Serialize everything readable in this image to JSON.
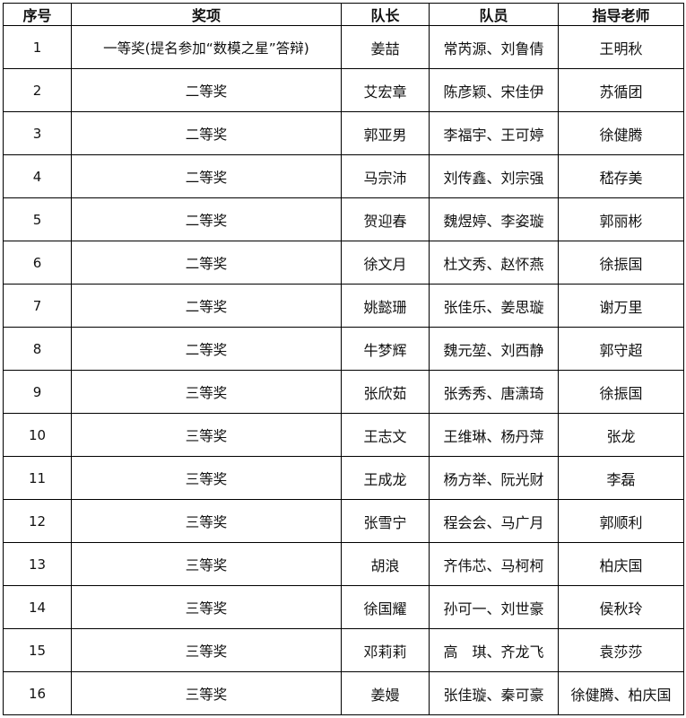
{
  "headers": [
    "序号",
    "奖项",
    "队长",
    "队员",
    "指导老师"
  ],
  "rows": [
    {
      "no": "1",
      "award": "一等奖(提名参加“数模之星”答辩)",
      "leader": "姜喆",
      "members": "常芮源、刘鲁倩",
      "advisor": "王明秋"
    },
    {
      "no": "2",
      "award": "二等奖",
      "leader": "艾宏章",
      "members": "陈彦颖、宋佳伊",
      "advisor": "苏循团"
    },
    {
      "no": "3",
      "award": "二等奖",
      "leader": "郭亚男",
      "members": "李福宇、王可婷",
      "advisor": "徐健腾"
    },
    {
      "no": "4",
      "award": "二等奖",
      "leader": "马宗沛",
      "members": "刘传鑫、刘宗强",
      "advisor": "嵇存美"
    },
    {
      "no": "5",
      "award": "二等奖",
      "leader": "贺迎春",
      "members": "魏煜婷、李姿璇",
      "advisor": "郭丽彬"
    },
    {
      "no": "6",
      "award": "二等奖",
      "leader": "徐文月",
      "members": "杜文秀、赵怀燕",
      "advisor": "徐振国"
    },
    {
      "no": "7",
      "award": "二等奖",
      "leader": "姚懿珊",
      "members": "张佳乐、姜思璇",
      "advisor": "谢万里"
    },
    {
      "no": "8",
      "award": "二等奖",
      "leader": "牛梦辉",
      "members": "魏元堃、刘西静",
      "advisor": "郭守超"
    },
    {
      "no": "9",
      "award": "三等奖",
      "leader": "张欣茹",
      "members": "张秀秀、唐潇琦",
      "advisor": "徐振国"
    },
    {
      "no": "10",
      "award": "三等奖",
      "leader": "王志文",
      "members": "王维琳、杨丹萍",
      "advisor": "张龙"
    },
    {
      "no": "11",
      "award": "三等奖",
      "leader": "王成龙",
      "members": "杨方举、阮光财",
      "advisor": "李磊"
    },
    {
      "no": "12",
      "award": "三等奖",
      "leader": "张雪宁",
      "members": "程会会、马广月",
      "advisor": "郭顺利"
    },
    {
      "no": "13",
      "award": "三等奖",
      "leader": "胡浪",
      "members": "齐伟芯、马柯柯",
      "advisor": "柏庆国"
    },
    {
      "no": "14",
      "award": "三等奖",
      "leader": "徐国耀",
      "members": "孙可一、刘世豪",
      "advisor": "侯秋玲"
    },
    {
      "no": "15",
      "award": "三等奖",
      "leader": "邓莉莉",
      "members": "高　琪、齐龙飞",
      "advisor": "袁莎莎"
    },
    {
      "no": "16",
      "award": "三等奖",
      "leader": "姜嫚",
      "members": "张佳璇、秦可豪",
      "advisor": "徐健腾、柏庆国"
    }
  ]
}
